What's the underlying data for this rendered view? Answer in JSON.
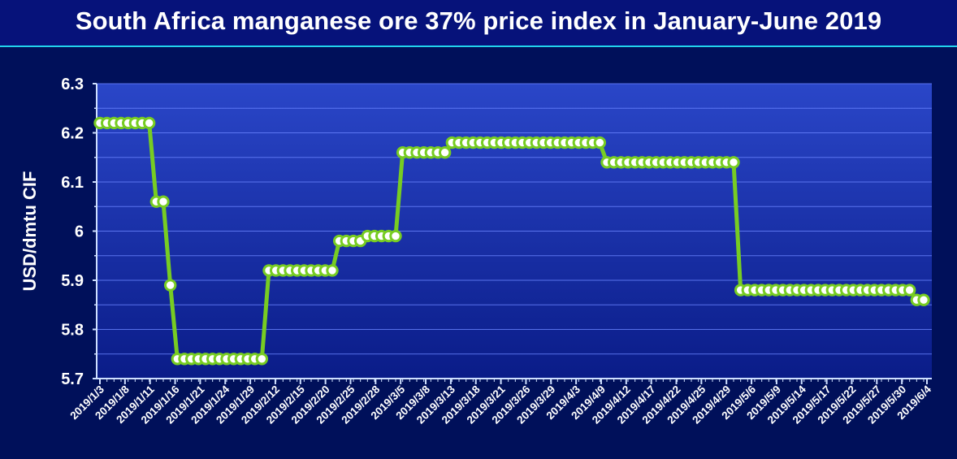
{
  "title": "South Africa manganese ore 37% price index in January-June 2019",
  "chart_data": {
    "type": "line",
    "title": "South Africa manganese ore 37% price index in January-June 2019",
    "ylabel": "USD/dmtu CIF",
    "xlabel": "",
    "ylim": [
      5.7,
      6.3
    ],
    "yticks": [
      "5.7",
      "5.8",
      "5.9",
      "6",
      "6.1",
      "6.2",
      "6.3"
    ],
    "grid": true,
    "legend": "none",
    "colors": {
      "line": "#77cc22",
      "marker_fill": "#ffffff",
      "marker_edge": "#77cc22",
      "axis": "#cfe0ff",
      "grid": "#6a84ff",
      "plot_bg_top": "#2a46c8",
      "plot_bg_bottom": "#0a1c88"
    },
    "x_tick_labels": [
      "2019/1/3",
      "2019/1/8",
      "2019/1/11",
      "2019/1/16",
      "2019/1/21",
      "2019/1/24",
      "2019/1/29",
      "2019/2/12",
      "2019/2/15",
      "2019/2/20",
      "2019/2/25",
      "2019/2/28",
      "2019/3/5",
      "2019/3/8",
      "2019/3/13",
      "2019/3/18",
      "2019/3/21",
      "2019/3/26",
      "2019/3/29",
      "2019/4/3",
      "2019/4/9",
      "2019/4/12",
      "2019/4/17",
      "2019/4/22",
      "2019/4/25",
      "2019/4/29",
      "2019/5/6",
      "2019/5/9",
      "2019/5/14",
      "2019/5/17",
      "2019/5/22",
      "2019/5/27",
      "2019/5/30",
      "2019/6/4"
    ],
    "series": [
      {
        "values": [
          6.22,
          6.22,
          6.22,
          6.22,
          6.22,
          6.22,
          6.22,
          6.22,
          6.06,
          6.06,
          5.89,
          5.74,
          5.74,
          5.74,
          5.74,
          5.74,
          5.74,
          5.74,
          5.74,
          5.74,
          5.74,
          5.74,
          5.74,
          5.74,
          5.92,
          5.92,
          5.92,
          5.92,
          5.92,
          5.92,
          5.92,
          5.92,
          5.92,
          5.92,
          5.98,
          5.98,
          5.98,
          5.98,
          5.99,
          5.99,
          5.99,
          5.99,
          5.99,
          6.16,
          6.16,
          6.16,
          6.16,
          6.16,
          6.16,
          6.16,
          6.18,
          6.18,
          6.18,
          6.18,
          6.18,
          6.18,
          6.18,
          6.18,
          6.18,
          6.18,
          6.18,
          6.18,
          6.18,
          6.18,
          6.18,
          6.18,
          6.18,
          6.18,
          6.18,
          6.18,
          6.18,
          6.18,
          6.14,
          6.14,
          6.14,
          6.14,
          6.14,
          6.14,
          6.14,
          6.14,
          6.14,
          6.14,
          6.14,
          6.14,
          6.14,
          6.14,
          6.14,
          6.14,
          6.14,
          6.14,
          6.14,
          5.88,
          5.88,
          5.88,
          5.88,
          5.88,
          5.88,
          5.88,
          5.88,
          5.88,
          5.88,
          5.88,
          5.88,
          5.88,
          5.88,
          5.88,
          5.88,
          5.88,
          5.88,
          5.88,
          5.88,
          5.88,
          5.88,
          5.88,
          5.88,
          5.88,
          5.86,
          5.86
        ]
      }
    ]
  }
}
